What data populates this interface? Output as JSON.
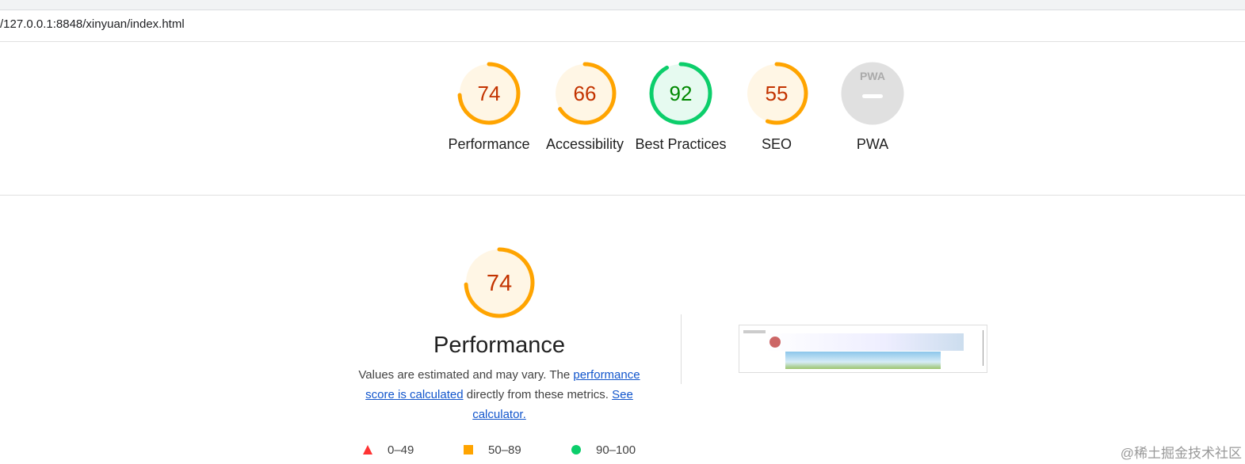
{
  "url": "/127.0.0.1:8848/xinyuan/index.html",
  "gauges": [
    {
      "label": "Performance",
      "score": 74,
      "color": "#ffa400",
      "text_color": "#c33300"
    },
    {
      "label": "Accessibility",
      "score": 66,
      "color": "#ffa400",
      "text_color": "#c33300"
    },
    {
      "label": "Best Practices",
      "score": 92,
      "color": "#0cce6b",
      "text_color": "#008800"
    },
    {
      "label": "SEO",
      "score": 55,
      "color": "#ffa400",
      "text_color": "#c33300"
    },
    {
      "label": "PWA",
      "badge": "PWA"
    }
  ],
  "performance": {
    "score": 74,
    "color": "#ffa400",
    "text_color": "#c33300",
    "title": "Performance",
    "text_before": "Values are estimated and may vary. The ",
    "link_score": "performance score is calculated",
    "text_after": " directly from these metrics.",
    "link_calculator": "See calculator."
  },
  "legend": [
    {
      "label": "0–49",
      "color": "#ff3333"
    },
    {
      "label": "50–89",
      "color": "#ffa400"
    },
    {
      "label": "90–100",
      "color": "#0cce6b"
    }
  ],
  "watermark": "@稀土掘金技术社区"
}
